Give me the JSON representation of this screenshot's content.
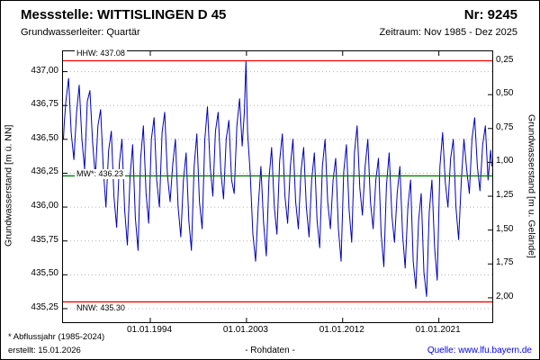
{
  "header": {
    "station": "Messstelle: WITTISLINGEN D 45",
    "number": "Nr: 9245",
    "aquifer": "Grundwasserleiter: Quartär",
    "period": "Zeitraum: Nov 1985 - Dez 2025"
  },
  "footer": {
    "footnote": "* Abflussjahr (1985-2024)",
    "created": "erstellt: 15.01.2026",
    "center": "- Rohdaten -",
    "source_label": "Quelle: ",
    "source_link": "www.lfu.bayern.de"
  },
  "chart_data": {
    "type": "line",
    "title": "Messstelle: WITTISLINGEN D 45",
    "ylabel_left": "Grundwasserstand [m ü. NN]",
    "ylabel_right": "Grundwasserstand [m u. Gelände]",
    "grid": true,
    "colors": {
      "series": "#0000bb",
      "ref_extreme": "#ff0000",
      "ref_mean": "#008000",
      "grid": "#b4b4b4",
      "frame": "#000000"
    },
    "y_left": {
      "min": 435.15,
      "max": 437.15,
      "ticks": [
        435.25,
        435.5,
        435.75,
        436.0,
        436.25,
        436.5,
        436.75,
        437.0
      ]
    },
    "y_right": {
      "ground_elevation": 437.33,
      "ticks": [
        0.25,
        0.5,
        0.75,
        1.0,
        1.25,
        1.5,
        1.75,
        2.0
      ]
    },
    "x": {
      "min": 1985.83,
      "max": 2026.0,
      "ticks": [
        {
          "x": 1994.0,
          "label": "01.01.1994"
        },
        {
          "x": 2003.0,
          "label": "01.01.2003"
        },
        {
          "x": 2012.0,
          "label": "01.01.2012"
        },
        {
          "x": 2021.0,
          "label": "01.01.2021"
        }
      ]
    },
    "ref_lines": [
      {
        "name": "HHW",
        "label": "HHW: 437.08",
        "value": 437.08,
        "color": "#ff0000",
        "label_pos": "above"
      },
      {
        "name": "MW",
        "label": "MW*: 436.23",
        "value": 436.23,
        "color": "#008000",
        "label_pos": "center"
      },
      {
        "name": "NNW",
        "label": "NNW: 435.30",
        "value": 435.3,
        "color": "#ff0000",
        "label_pos": "below"
      }
    ],
    "series": [
      {
        "name": "Rohdaten",
        "color": "#0000bb",
        "points": [
          [
            1985.87,
            436.5
          ],
          [
            1985.95,
            436.62
          ],
          [
            1986.1,
            436.78
          ],
          [
            1986.35,
            436.95
          ],
          [
            1986.6,
            436.55
          ],
          [
            1986.85,
            436.35
          ],
          [
            1987.1,
            436.7
          ],
          [
            1987.35,
            436.9
          ],
          [
            1987.6,
            436.5
          ],
          [
            1987.85,
            436.28
          ],
          [
            1988.1,
            436.78
          ],
          [
            1988.35,
            436.86
          ],
          [
            1988.6,
            436.48
          ],
          [
            1988.85,
            436.22
          ],
          [
            1989.1,
            436.6
          ],
          [
            1989.35,
            436.72
          ],
          [
            1989.6,
            436.28
          ],
          [
            1989.85,
            436.0
          ],
          [
            1990.1,
            436.42
          ],
          [
            1990.35,
            436.56
          ],
          [
            1990.6,
            436.08
          ],
          [
            1990.85,
            435.85
          ],
          [
            1991.1,
            436.32
          ],
          [
            1991.35,
            436.5
          ],
          [
            1991.6,
            435.98
          ],
          [
            1991.85,
            435.72
          ],
          [
            1992.1,
            436.22
          ],
          [
            1992.35,
            436.46
          ],
          [
            1992.6,
            435.92
          ],
          [
            1992.85,
            435.68
          ],
          [
            1993.1,
            436.36
          ],
          [
            1993.35,
            436.6
          ],
          [
            1993.6,
            436.1
          ],
          [
            1993.85,
            435.88
          ],
          [
            1994.1,
            436.5
          ],
          [
            1994.35,
            436.66
          ],
          [
            1994.6,
            436.2
          ],
          [
            1994.85,
            436.0
          ],
          [
            1995.1,
            436.55
          ],
          [
            1995.35,
            436.7
          ],
          [
            1995.6,
            436.24
          ],
          [
            1995.85,
            436.04
          ],
          [
            1996.1,
            436.32
          ],
          [
            1996.35,
            436.5
          ],
          [
            1996.6,
            436.0
          ],
          [
            1996.85,
            435.78
          ],
          [
            1997.1,
            436.2
          ],
          [
            1997.35,
            436.4
          ],
          [
            1997.6,
            435.9
          ],
          [
            1997.85,
            435.68
          ],
          [
            1998.1,
            436.3
          ],
          [
            1998.35,
            436.54
          ],
          [
            1998.6,
            436.04
          ],
          [
            1998.85,
            435.84
          ],
          [
            1999.1,
            436.5
          ],
          [
            1999.35,
            436.74
          ],
          [
            1999.6,
            436.3
          ],
          [
            1999.85,
            436.08
          ],
          [
            2000.1,
            436.56
          ],
          [
            2000.35,
            436.7
          ],
          [
            2000.6,
            436.26
          ],
          [
            2000.85,
            436.06
          ],
          [
            2001.1,
            436.5
          ],
          [
            2001.35,
            436.64
          ],
          [
            2001.6,
            436.2
          ],
          [
            2001.85,
            436.1
          ],
          [
            2002.1,
            436.6
          ],
          [
            2002.35,
            436.8
          ],
          [
            2002.6,
            436.45
          ],
          [
            2002.8,
            436.7
          ],
          [
            2002.95,
            437.08
          ],
          [
            2003.1,
            436.55
          ],
          [
            2003.35,
            436.25
          ],
          [
            2003.6,
            435.8
          ],
          [
            2003.85,
            435.6
          ],
          [
            2004.1,
            436.0
          ],
          [
            2004.35,
            436.3
          ],
          [
            2004.6,
            435.88
          ],
          [
            2004.85,
            435.64
          ],
          [
            2005.1,
            436.2
          ],
          [
            2005.35,
            436.44
          ],
          [
            2005.6,
            436.0
          ],
          [
            2005.85,
            435.8
          ],
          [
            2006.1,
            436.34
          ],
          [
            2006.35,
            436.54
          ],
          [
            2006.6,
            436.08
          ],
          [
            2006.85,
            435.88
          ],
          [
            2007.1,
            436.3
          ],
          [
            2007.35,
            436.5
          ],
          [
            2007.6,
            436.04
          ],
          [
            2007.85,
            435.84
          ],
          [
            2008.1,
            436.26
          ],
          [
            2008.35,
            436.44
          ],
          [
            2008.6,
            436.0
          ],
          [
            2008.85,
            435.78
          ],
          [
            2009.1,
            436.2
          ],
          [
            2009.35,
            436.4
          ],
          [
            2009.6,
            435.9
          ],
          [
            2009.85,
            435.7
          ],
          [
            2010.1,
            436.3
          ],
          [
            2010.35,
            436.5
          ],
          [
            2010.6,
            436.04
          ],
          [
            2010.85,
            435.84
          ],
          [
            2011.1,
            436.2
          ],
          [
            2011.35,
            436.36
          ],
          [
            2011.6,
            435.84
          ],
          [
            2011.85,
            435.6
          ],
          [
            2012.1,
            436.26
          ],
          [
            2012.35,
            436.46
          ],
          [
            2012.6,
            435.98
          ],
          [
            2012.85,
            435.74
          ],
          [
            2013.1,
            436.4
          ],
          [
            2013.35,
            436.6
          ],
          [
            2013.6,
            436.14
          ],
          [
            2013.85,
            435.94
          ],
          [
            2014.1,
            436.3
          ],
          [
            2014.35,
            436.5
          ],
          [
            2014.6,
            436.04
          ],
          [
            2014.85,
            435.84
          ],
          [
            2015.1,
            436.2
          ],
          [
            2015.35,
            436.36
          ],
          [
            2015.6,
            435.8
          ],
          [
            2015.85,
            435.56
          ],
          [
            2016.1,
            436.16
          ],
          [
            2016.35,
            436.4
          ],
          [
            2016.6,
            435.94
          ],
          [
            2016.85,
            435.74
          ],
          [
            2017.1,
            436.1
          ],
          [
            2017.35,
            436.3
          ],
          [
            2017.6,
            435.8
          ],
          [
            2017.85,
            435.55
          ],
          [
            2018.1,
            436.0
          ],
          [
            2018.35,
            436.2
          ],
          [
            2018.6,
            435.6
          ],
          [
            2018.85,
            435.4
          ],
          [
            2019.1,
            435.9
          ],
          [
            2019.35,
            436.1
          ],
          [
            2019.6,
            435.52
          ],
          [
            2019.85,
            435.34
          ],
          [
            2020.1,
            435.96
          ],
          [
            2020.35,
            436.2
          ],
          [
            2020.6,
            435.7
          ],
          [
            2020.85,
            435.46
          ],
          [
            2021.1,
            436.3
          ],
          [
            2021.35,
            436.55
          ],
          [
            2021.6,
            436.18
          ],
          [
            2021.85,
            436.0
          ],
          [
            2022.1,
            436.36
          ],
          [
            2022.35,
            436.5
          ],
          [
            2022.6,
            436.0
          ],
          [
            2022.85,
            435.76
          ],
          [
            2023.1,
            436.2
          ],
          [
            2023.35,
            436.5
          ],
          [
            2023.6,
            436.28
          ],
          [
            2023.85,
            436.1
          ],
          [
            2024.1,
            436.5
          ],
          [
            2024.35,
            436.66
          ],
          [
            2024.6,
            436.3
          ],
          [
            2024.85,
            436.12
          ],
          [
            2025.1,
            436.46
          ],
          [
            2025.35,
            436.6
          ],
          [
            2025.6,
            436.2
          ],
          [
            2025.85,
            436.42
          ],
          [
            2025.95,
            436.3
          ]
        ]
      }
    ]
  }
}
